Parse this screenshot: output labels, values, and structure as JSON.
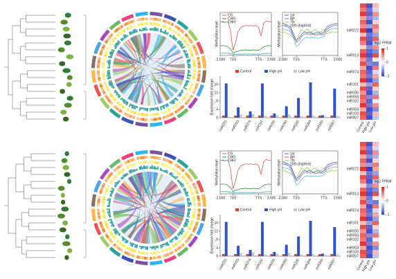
{
  "chart_data": [
    {
      "type": "line",
      "y_label": "Methylation level",
      "x": [
        0,
        2,
        4,
        6,
        8,
        10,
        12,
        14,
        16,
        18,
        20,
        22,
        24,
        26,
        28,
        30,
        32,
        34,
        36,
        38,
        40
      ],
      "xlim": [
        0,
        40
      ],
      "ylim": [
        0,
        1
      ],
      "xticks": [
        {
          "value": 0,
          "label": "-2,000"
        },
        {
          "value": 10,
          "label": "TSS"
        },
        {
          "value": 30,
          "label": "TTS"
        },
        {
          "value": 40,
          "label": "2,000"
        }
      ],
      "series": [
        {
          "name": "CG",
          "color": "#d9534f",
          "values": [
            0.78,
            0.79,
            0.77,
            0.78,
            0.6,
            0.12,
            0.3,
            0.55,
            0.65,
            0.68,
            0.7,
            0.69,
            0.7,
            0.68,
            0.7,
            0.66,
            0.45,
            0.75,
            0.8,
            0.78,
            0.79
          ]
        },
        {
          "name": "CHG",
          "color": "#3a8a3a",
          "values": [
            0.22,
            0.23,
            0.22,
            0.2,
            0.15,
            0.05,
            0.08,
            0.1,
            0.12,
            0.12,
            0.13,
            0.12,
            0.12,
            0.13,
            0.12,
            0.12,
            0.15,
            0.2,
            0.22,
            0.23,
            0.22
          ]
        },
        {
          "name": "CHH",
          "color": "#2aa0a0",
          "values": [
            0.05,
            0.05,
            0.05,
            0.05,
            0.04,
            0.02,
            0.03,
            0.03,
            0.03,
            0.03,
            0.03,
            0.03,
            0.03,
            0.03,
            0.03,
            0.03,
            0.03,
            0.04,
            0.05,
            0.05,
            0.05
          ]
        }
      ]
    },
    {
      "type": "line",
      "y_label": "Methylation level",
      "x": [
        0,
        2,
        4,
        6,
        8,
        10,
        12,
        14,
        16,
        18,
        20,
        22,
        24,
        26,
        28,
        30,
        32,
        34,
        36,
        38,
        40
      ],
      "xlim": [
        0,
        40
      ],
      "ylim": [
        0,
        1
      ],
      "xticks": [
        {
          "value": 0,
          "label": "-2,000"
        },
        {
          "value": 10,
          "label": "TSS"
        },
        {
          "value": 30,
          "label": "TTS"
        },
        {
          "value": 40,
          "label": "2,000"
        }
      ],
      "series": [
        {
          "name": "1st",
          "color": "#3b5bdb",
          "values": [
            0.75,
            0.72,
            0.7,
            0.65,
            0.5,
            0.35,
            0.4,
            0.5,
            0.55,
            0.52,
            0.55,
            0.5,
            0.52,
            0.55,
            0.5,
            0.55,
            0.65,
            0.7,
            0.72,
            0.74,
            0.73
          ]
        },
        {
          "name": "4th",
          "color": "#9b59b6",
          "values": [
            0.7,
            0.68,
            0.66,
            0.6,
            0.45,
            0.3,
            0.35,
            0.45,
            0.5,
            0.5,
            0.48,
            0.5,
            0.47,
            0.5,
            0.48,
            0.5,
            0.6,
            0.65,
            0.68,
            0.7,
            0.69
          ]
        },
        {
          "name": "7th",
          "color": "#9acd32",
          "values": [
            0.55,
            0.53,
            0.5,
            0.48,
            0.4,
            0.32,
            0.5,
            0.6,
            0.55,
            0.62,
            0.5,
            0.58,
            0.6,
            0.5,
            0.55,
            0.6,
            0.5,
            0.52,
            0.55,
            0.53,
            0.54
          ]
        },
        {
          "name": "10th (highest)",
          "color": "#4fc3f7",
          "values": [
            0.62,
            0.6,
            0.58,
            0.55,
            0.4,
            0.2,
            0.25,
            0.35,
            0.4,
            0.42,
            0.4,
            0.42,
            0.41,
            0.4,
            0.42,
            0.44,
            0.55,
            0.6,
            0.62,
            0.63,
            0.62
          ]
        }
      ]
    },
    {
      "type": "bar",
      "y_label": "Expression fold change",
      "categories": [
        "miR072",
        "miR013",
        "miR074",
        "miR101",
        "miR035",
        "miR093",
        "miR102",
        "miR004",
        "miR103",
        "miR007"
      ],
      "ylim": [
        0,
        20
      ],
      "yticks": [
        0,
        4,
        8,
        12,
        16
      ],
      "series": [
        {
          "name": "Control",
          "color": "#e03c31",
          "values": [
            1,
            1,
            1,
            1,
            1,
            1,
            1,
            1,
            1,
            1
          ]
        },
        {
          "name": "High pH",
          "color": "#2f55c9",
          "values": [
            16.5,
            5,
            3,
            16.5,
            2,
            5.5,
            9.5,
            17,
            1.2,
            14
          ]
        },
        {
          "name": "Low pH",
          "color": "#c8c8c8",
          "values": [
            0.5,
            1.5,
            1.8,
            0.9,
            1.2,
            1.5,
            0.8,
            1,
            0.6,
            0.9
          ]
        }
      ]
    },
    {
      "type": "heatmap",
      "columns": [
        "Control",
        "High pH",
        "Low pH"
      ],
      "rows": [
        null,
        null,
        null,
        null,
        null,
        null,
        "miR072",
        null,
        null,
        null,
        null,
        null,
        "miR013",
        null,
        null,
        null,
        "miR074",
        null,
        null,
        "miR101",
        null,
        "miR035",
        "miR093",
        "miR102",
        null,
        "miR004",
        "miR103",
        "miR007"
      ],
      "values": [
        [
          0.8,
          -0.9,
          0.3
        ],
        [
          0.6,
          -0.7,
          -0.2
        ],
        [
          0.9,
          -0.8,
          0.5
        ],
        [
          0.4,
          -0.6,
          -0.4
        ],
        [
          0.7,
          -0.9,
          0.2
        ],
        [
          0.5,
          -0.5,
          0.6
        ],
        [
          0.9,
          -1,
          0.4
        ],
        [
          0.3,
          -0.7,
          -0.5
        ],
        [
          0.8,
          -0.8,
          0.7
        ],
        [
          0.6,
          -0.9,
          -0.3
        ],
        [
          0.2,
          -0.6,
          0.5
        ],
        [
          0.7,
          -0.8,
          -0.6
        ],
        [
          0.9,
          -0.9,
          0.8
        ],
        [
          0.5,
          -0.7,
          0.1
        ],
        [
          0.8,
          -0.6,
          -0.7
        ],
        [
          0.4,
          -0.9,
          0.6
        ],
        [
          0.7,
          -0.8,
          -0.2
        ],
        [
          0.6,
          -0.7,
          0.4
        ],
        [
          0.9,
          -0.9,
          -0.5
        ],
        [
          0.3,
          -0.5,
          0.7
        ],
        [
          0.8,
          -0.8,
          0.2
        ],
        [
          0.5,
          -0.9,
          -0.4
        ],
        [
          0.7,
          -0.6,
          0.6
        ],
        [
          0.6,
          -0.8,
          -0.1
        ],
        [
          0.9,
          -0.7,
          0.5
        ],
        [
          0.4,
          -0.9,
          -0.6
        ],
        [
          0.8,
          -0.8,
          0.3
        ],
        [
          0.7,
          -0.9,
          -0.3
        ]
      ],
      "colorbar": {
        "label": "log2 FPKM",
        "lim": [
          -1,
          1
        ],
        "ticks": [
          1,
          0,
          -1
        ]
      },
      "low_color": "#2f3fd0",
      "mid_color": "#ffffff",
      "high_color": "#e02020"
    },
    {
      "type": "line",
      "y_label": "Methylation level",
      "x": [
        0,
        2,
        4,
        6,
        8,
        10,
        12,
        14,
        16,
        18,
        20,
        22,
        24,
        26,
        28,
        30,
        32,
        34,
        36,
        38,
        40
      ],
      "xlim": [
        0,
        40
      ],
      "ylim": [
        0,
        1
      ],
      "xticks": [
        {
          "value": 0,
          "label": "-2,000"
        },
        {
          "value": 10,
          "label": "TSS"
        },
        {
          "value": 30,
          "label": "TTS"
        },
        {
          "value": 40,
          "label": "2,000"
        }
      ],
      "series": [
        {
          "name": "CG",
          "color": "#d9534f",
          "values": [
            0.78,
            0.79,
            0.77,
            0.78,
            0.6,
            0.12,
            0.3,
            0.55,
            0.65,
            0.68,
            0.7,
            0.69,
            0.7,
            0.68,
            0.7,
            0.66,
            0.45,
            0.75,
            0.8,
            0.78,
            0.79
          ]
        },
        {
          "name": "CHG",
          "color": "#3a8a3a",
          "values": [
            0.22,
            0.23,
            0.22,
            0.2,
            0.15,
            0.05,
            0.08,
            0.1,
            0.12,
            0.12,
            0.13,
            0.12,
            0.12,
            0.13,
            0.12,
            0.12,
            0.15,
            0.2,
            0.22,
            0.23,
            0.22
          ]
        },
        {
          "name": "CHH",
          "color": "#2aa0a0",
          "values": [
            0.05,
            0.05,
            0.05,
            0.05,
            0.04,
            0.02,
            0.03,
            0.03,
            0.03,
            0.03,
            0.03,
            0.03,
            0.03,
            0.03,
            0.03,
            0.03,
            0.03,
            0.04,
            0.05,
            0.05,
            0.05
          ]
        }
      ]
    },
    {
      "type": "line",
      "y_label": "Methylation level",
      "x": [
        0,
        2,
        4,
        6,
        8,
        10,
        12,
        14,
        16,
        18,
        20,
        22,
        24,
        26,
        28,
        30,
        32,
        34,
        36,
        38,
        40
      ],
      "xlim": [
        0,
        40
      ],
      "ylim": [
        0,
        1
      ],
      "xticks": [
        {
          "value": 0,
          "label": "-2,000"
        },
        {
          "value": 10,
          "label": "TSS"
        },
        {
          "value": 30,
          "label": "TTS"
        },
        {
          "value": 40,
          "label": "2,000"
        }
      ],
      "series": [
        {
          "name": "1st",
          "color": "#3b5bdb",
          "values": [
            0.75,
            0.72,
            0.7,
            0.65,
            0.5,
            0.35,
            0.4,
            0.5,
            0.55,
            0.52,
            0.55,
            0.5,
            0.52,
            0.55,
            0.5,
            0.55,
            0.65,
            0.7,
            0.72,
            0.74,
            0.73
          ]
        },
        {
          "name": "4th",
          "color": "#9b59b6",
          "values": [
            0.7,
            0.68,
            0.66,
            0.6,
            0.45,
            0.3,
            0.35,
            0.45,
            0.5,
            0.5,
            0.48,
            0.5,
            0.47,
            0.5,
            0.48,
            0.5,
            0.6,
            0.65,
            0.68,
            0.7,
            0.69
          ]
        },
        {
          "name": "7th",
          "color": "#9acd32",
          "values": [
            0.55,
            0.53,
            0.5,
            0.48,
            0.4,
            0.32,
            0.5,
            0.6,
            0.55,
            0.62,
            0.5,
            0.58,
            0.6,
            0.5,
            0.55,
            0.6,
            0.5,
            0.52,
            0.55,
            0.53,
            0.54
          ]
        },
        {
          "name": "10th (highest)",
          "color": "#4fc3f7",
          "values": [
            0.62,
            0.6,
            0.58,
            0.55,
            0.4,
            0.2,
            0.25,
            0.35,
            0.4,
            0.42,
            0.4,
            0.42,
            0.41,
            0.4,
            0.42,
            0.44,
            0.55,
            0.6,
            0.62,
            0.63,
            0.62
          ]
        }
      ]
    },
    {
      "type": "bar",
      "y_label": "Expression fold change",
      "categories": [
        "miR072",
        "miR013",
        "miR074",
        "miR101",
        "miR035",
        "miR093",
        "miR102",
        "miR004",
        "miR103",
        "miR007"
      ],
      "ylim": [
        0,
        20
      ],
      "yticks": [
        0,
        4,
        8,
        12,
        16
      ],
      "series": [
        {
          "name": "Control",
          "color": "#e03c31",
          "values": [
            1,
            1,
            1,
            1,
            1,
            1,
            1,
            1,
            1,
            1
          ]
        },
        {
          "name": "High pH",
          "color": "#2f55c9",
          "values": [
            16.5,
            5,
            3,
            16.5,
            2,
            5.5,
            9.5,
            17,
            1.2,
            14
          ]
        },
        {
          "name": "Low pH",
          "color": "#c8c8c8",
          "values": [
            0.5,
            1.5,
            1.8,
            0.9,
            1.2,
            1.5,
            0.8,
            1,
            0.6,
            0.9
          ]
        }
      ]
    },
    {
      "type": "heatmap",
      "columns": [
        "Control",
        "High pH",
        "Low pH"
      ],
      "rows": [
        null,
        null,
        null,
        null,
        null,
        null,
        "miR072",
        null,
        null,
        null,
        null,
        null,
        "miR013",
        null,
        null,
        null,
        "miR074",
        null,
        null,
        "miR101",
        null,
        "miR035",
        "miR093",
        "miR102",
        null,
        "miR004",
        "miR103",
        "miR007"
      ],
      "values": [
        [
          0.8,
          -0.9,
          0.3
        ],
        [
          0.6,
          -0.7,
          -0.2
        ],
        [
          0.9,
          -0.8,
          0.5
        ],
        [
          0.4,
          -0.6,
          -0.4
        ],
        [
          0.7,
          -0.9,
          0.2
        ],
        [
          0.5,
          -0.5,
          0.6
        ],
        [
          0.9,
          -1,
          0.4
        ],
        [
          0.3,
          -0.7,
          -0.5
        ],
        [
          0.8,
          -0.8,
          0.7
        ],
        [
          0.6,
          -0.9,
          -0.3
        ],
        [
          0.2,
          -0.6,
          0.5
        ],
        [
          0.7,
          -0.8,
          -0.6
        ],
        [
          0.9,
          -0.9,
          0.8
        ],
        [
          0.5,
          -0.7,
          0.1
        ],
        [
          0.8,
          -0.6,
          -0.7
        ],
        [
          0.4,
          -0.9,
          0.6
        ],
        [
          0.7,
          -0.8,
          -0.2
        ],
        [
          0.6,
          -0.7,
          0.4
        ],
        [
          0.9,
          -0.9,
          -0.5
        ],
        [
          0.3,
          -0.5,
          0.7
        ],
        [
          0.8,
          -0.8,
          0.2
        ],
        [
          0.5,
          -0.9,
          -0.4
        ],
        [
          0.7,
          -0.6,
          0.6
        ],
        [
          0.6,
          -0.8,
          -0.1
        ],
        [
          0.9,
          -0.7,
          0.5
        ],
        [
          0.4,
          -0.9,
          -0.6
        ],
        [
          0.8,
          -0.8,
          0.3
        ],
        [
          0.7,
          -0.9,
          -0.3
        ]
      ],
      "colorbar": {
        "label": "log2 FPKM",
        "lim": [
          -1,
          1
        ],
        "ticks": [
          1,
          0,
          -1
        ]
      },
      "low_color": "#2f3fd0",
      "mid_color": "#ffffff",
      "high_color": "#e02020"
    }
  ]
}
